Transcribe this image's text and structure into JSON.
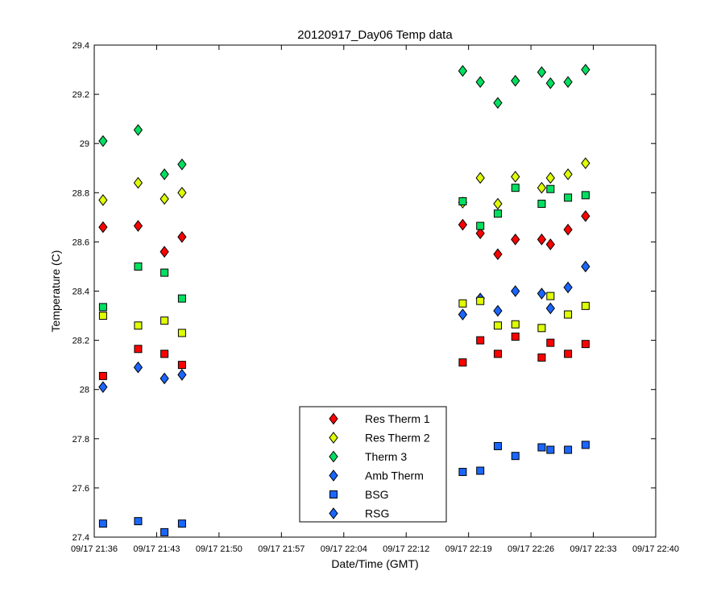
{
  "chart_data": {
    "type": "scatter",
    "title": "20120917_Day06 Temp data",
    "xlabel": "Date/Time (GMT)",
    "ylabel": "Temperature (C)",
    "x_type": "time",
    "xlim": [
      "09/17 21:36",
      "09/17 22:40"
    ],
    "ylim": [
      27.4,
      29.4
    ],
    "xticks": [
      "09/17 21:36",
      "09/17 21:43",
      "09/17 21:50",
      "09/17 21:57",
      "09/17 22:04",
      "09/17 22:12",
      "09/17 22:19",
      "09/17 22:26",
      "09/17 22:33",
      "09/17 22:40"
    ],
    "yticks": [
      "27.4",
      "27.6",
      "27.8",
      "28",
      "28.2",
      "28.4",
      "28.6",
      "28.8",
      "29",
      "29.2",
      "29.4"
    ],
    "grid": false,
    "legend_position": "bottom-center",
    "series": [
      {
        "name": "Res Therm 1",
        "marker": "diamond",
        "color": "#ff0000",
        "points": [
          [
            "09/17 21:37",
            28.66
          ],
          [
            "09/17 21:41",
            28.665
          ],
          [
            "09/17 21:44",
            28.56
          ],
          [
            "09/17 21:46",
            28.62
          ],
          [
            "09/17 22:18",
            28.67
          ],
          [
            "09/17 22:20",
            28.635
          ],
          [
            "09/17 22:22",
            28.55
          ],
          [
            "09/17 22:24",
            28.61
          ],
          [
            "09/17 22:27",
            28.61
          ],
          [
            "09/17 22:28",
            28.59
          ],
          [
            "09/17 22:30",
            28.65
          ],
          [
            "09/17 22:32",
            28.705
          ]
        ]
      },
      {
        "name": "Res Therm 2",
        "marker": "diamond",
        "color": "#dfff00",
        "points": [
          [
            "09/17 21:37",
            28.77
          ],
          [
            "09/17 21:41",
            28.84
          ],
          [
            "09/17 21:44",
            28.775
          ],
          [
            "09/17 21:46",
            28.8
          ],
          [
            "09/17 22:18",
            28.76
          ],
          [
            "09/17 22:20",
            28.86
          ],
          [
            "09/17 22:22",
            28.755
          ],
          [
            "09/17 22:24",
            28.865
          ],
          [
            "09/17 22:27",
            28.82
          ],
          [
            "09/17 22:28",
            28.86
          ],
          [
            "09/17 22:30",
            28.875
          ],
          [
            "09/17 22:32",
            28.92
          ]
        ]
      },
      {
        "name": "Therm 3",
        "marker": "diamond",
        "color": "#00e060",
        "points": [
          [
            "09/17 21:37",
            29.01
          ],
          [
            "09/17 21:41",
            29.055
          ],
          [
            "09/17 21:44",
            28.875
          ],
          [
            "09/17 21:46",
            28.915
          ],
          [
            "09/17 22:18",
            29.295
          ],
          [
            "09/17 22:20",
            29.25
          ],
          [
            "09/17 22:22",
            29.165
          ],
          [
            "09/17 22:24",
            29.255
          ],
          [
            "09/17 22:27",
            29.29
          ],
          [
            "09/17 22:28",
            29.245
          ],
          [
            "09/17 22:30",
            29.25
          ],
          [
            "09/17 22:32",
            29.3
          ]
        ]
      },
      {
        "name": "Amb Therm",
        "marker": "diamond",
        "color": "#1a66ff",
        "points": [
          [
            "09/17 21:37",
            28.01
          ],
          [
            "09/17 21:41",
            28.09
          ],
          [
            "09/17 21:44",
            28.045
          ],
          [
            "09/17 21:46",
            28.06
          ],
          [
            "09/17 22:18",
            28.305
          ],
          [
            "09/17 22:20",
            28.37
          ],
          [
            "09/17 22:22",
            28.32
          ],
          [
            "09/17 22:24",
            28.4
          ],
          [
            "09/17 22:27",
            28.39
          ],
          [
            "09/17 22:28",
            28.33
          ],
          [
            "09/17 22:30",
            28.415
          ],
          [
            "09/17 22:32",
            28.5
          ]
        ]
      },
      {
        "name": "BSG",
        "marker": "square",
        "color": "#1a66ff",
        "points": [
          [
            "09/17 21:37",
            27.455
          ],
          [
            "09/17 21:41",
            27.465
          ],
          [
            "09/17 21:44",
            27.42
          ],
          [
            "09/17 21:46",
            27.455
          ],
          [
            "09/17 22:18",
            27.665
          ],
          [
            "09/17 22:20",
            27.67
          ],
          [
            "09/17 22:22",
            27.77
          ],
          [
            "09/17 22:24",
            27.73
          ],
          [
            "09/17 22:27",
            27.765
          ],
          [
            "09/17 22:28",
            27.755
          ],
          [
            "09/17 22:30",
            27.755
          ],
          [
            "09/17 22:32",
            27.775
          ]
        ]
      },
      {
        "name": "RSG",
        "marker": "diamond",
        "color": "#1a66ff",
        "points": []
      },
      {
        "marker": "square",
        "color": "#ff0000",
        "points": [
          [
            "09/17 21:37",
            28.055
          ],
          [
            "09/17 21:41",
            28.165
          ],
          [
            "09/17 21:44",
            28.145
          ],
          [
            "09/17 21:46",
            28.1
          ],
          [
            "09/17 22:18",
            28.11
          ],
          [
            "09/17 22:20",
            28.2
          ],
          [
            "09/17 22:22",
            28.145
          ],
          [
            "09/17 22:24",
            28.215
          ],
          [
            "09/17 22:27",
            28.13
          ],
          [
            "09/17 22:28",
            28.19
          ],
          [
            "09/17 22:30",
            28.145
          ],
          [
            "09/17 22:32",
            28.185
          ]
        ]
      },
      {
        "marker": "square",
        "color": "#dfff00",
        "points": [
          [
            "09/17 21:37",
            28.3
          ],
          [
            "09/17 21:41",
            28.26
          ],
          [
            "09/17 21:44",
            28.28
          ],
          [
            "09/17 21:46",
            28.23
          ],
          [
            "09/17 22:18",
            28.35
          ],
          [
            "09/17 22:20",
            28.36
          ],
          [
            "09/17 22:22",
            28.26
          ],
          [
            "09/17 22:24",
            28.265
          ],
          [
            "09/17 22:27",
            28.25
          ],
          [
            "09/17 22:28",
            28.38
          ],
          [
            "09/17 22:30",
            28.305
          ],
          [
            "09/17 22:32",
            28.34
          ]
        ]
      },
      {
        "marker": "square",
        "color": "#00e060",
        "points": [
          [
            "09/17 21:37",
            28.335
          ],
          [
            "09/17 21:41",
            28.5
          ],
          [
            "09/17 21:44",
            28.475
          ],
          [
            "09/17 21:46",
            28.37
          ],
          [
            "09/17 22:18",
            28.765
          ],
          [
            "09/17 22:20",
            28.665
          ],
          [
            "09/17 22:22",
            28.715
          ],
          [
            "09/17 22:24",
            28.82
          ],
          [
            "09/17 22:27",
            28.755
          ],
          [
            "09/17 22:28",
            28.815
          ],
          [
            "09/17 22:30",
            28.78
          ],
          [
            "09/17 22:32",
            28.79
          ]
        ]
      }
    ]
  }
}
